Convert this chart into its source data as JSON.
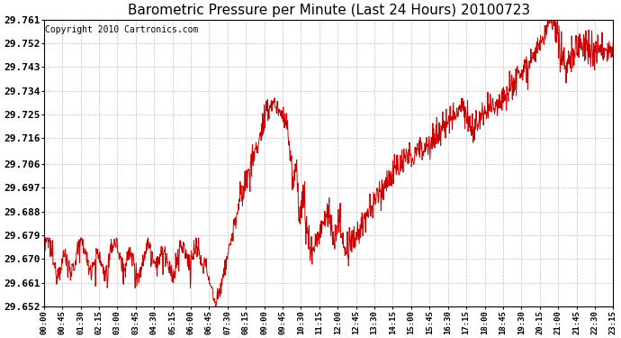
{
  "title": "Barometric Pressure per Minute (Last 24 Hours) 20100723",
  "copyright_text": "Copyright 2010 Cartronics.com",
  "line_color": "#cc0000",
  "background_color": "#ffffff",
  "grid_color": "#c0c0c0",
  "title_fontsize": 11,
  "copyright_fontsize": 7,
  "ytick_fontsize": 8,
  "xtick_fontsize": 6.5,
  "ylim": [
    29.652,
    29.761
  ],
  "yticks": [
    29.652,
    29.661,
    29.67,
    29.679,
    29.688,
    29.697,
    29.706,
    29.716,
    29.725,
    29.734,
    29.743,
    29.752,
    29.761
  ],
  "xtick_labels": [
    "00:00",
    "00:45",
    "01:30",
    "02:15",
    "03:00",
    "03:45",
    "04:30",
    "05:15",
    "06:00",
    "06:45",
    "07:30",
    "08:15",
    "09:00",
    "09:45",
    "10:30",
    "11:15",
    "12:00",
    "12:45",
    "13:30",
    "14:15",
    "15:00",
    "15:45",
    "16:30",
    "17:15",
    "18:00",
    "18:45",
    "19:30",
    "20:15",
    "21:00",
    "21:45",
    "22:30",
    "23:15"
  ]
}
